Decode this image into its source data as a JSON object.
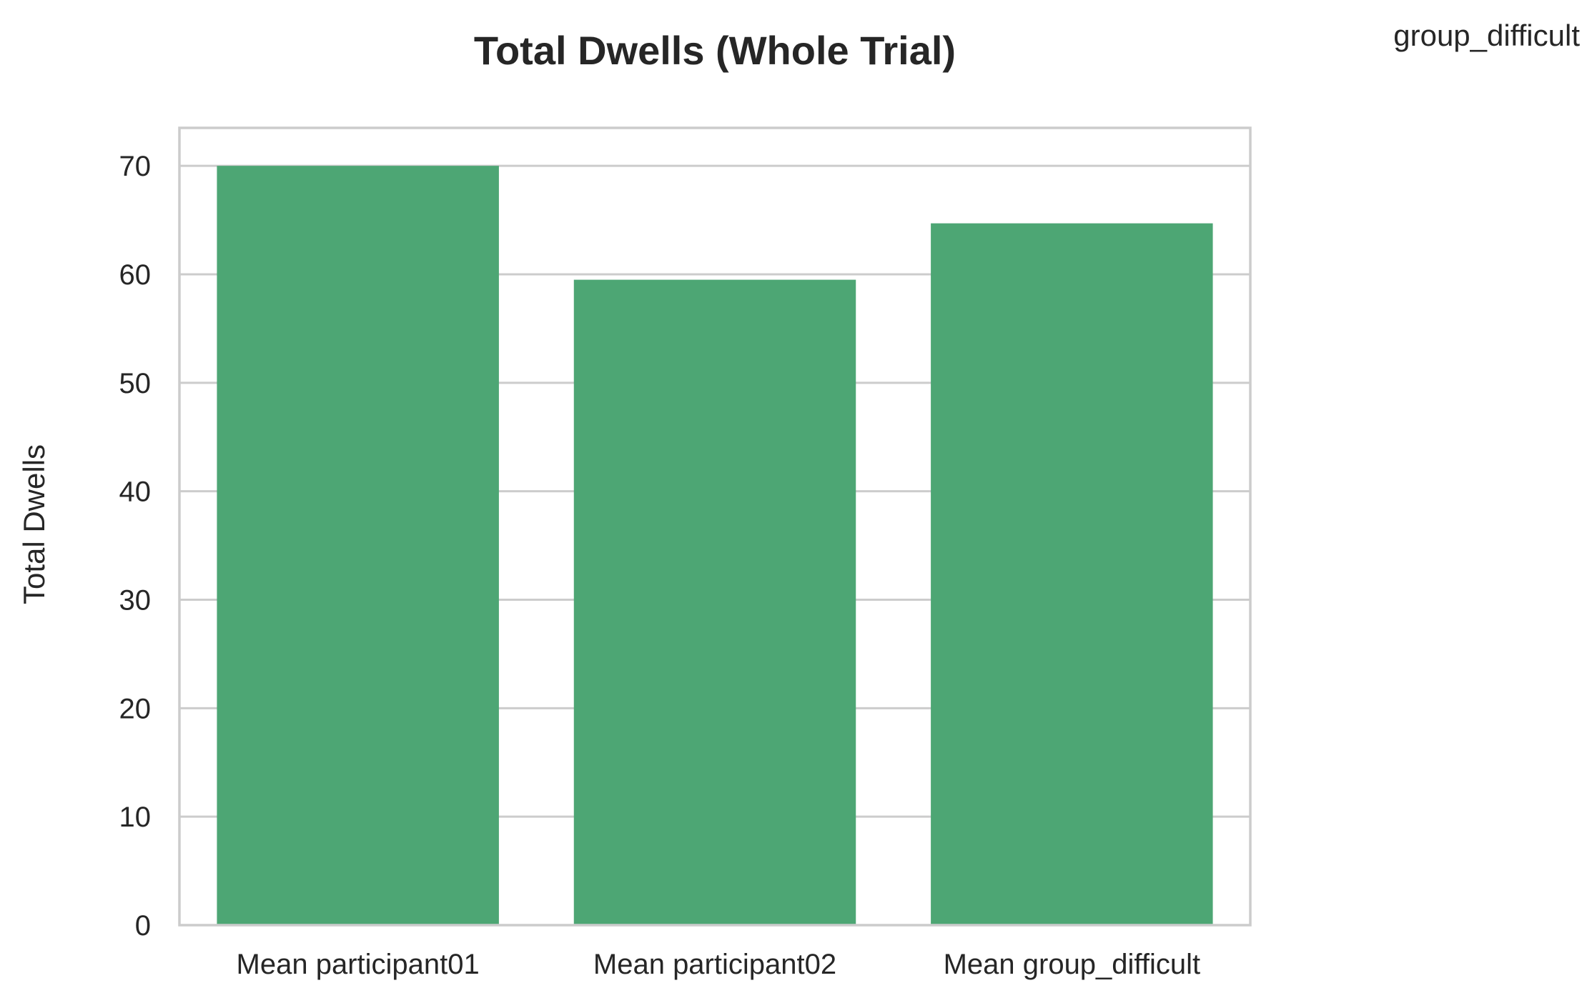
{
  "chart_data": {
    "type": "bar",
    "title": "Total Dwells (Whole Trial)",
    "corner_label": "group_difficult",
    "xlabel": "",
    "ylabel": "Total Dwells",
    "categories": [
      "Mean participant01",
      "Mean participant02",
      "Mean group_difficult"
    ],
    "values": [
      70.0,
      59.5,
      64.7
    ],
    "ylim": [
      0,
      73.5
    ],
    "yticks": [
      0,
      10,
      20,
      30,
      40,
      50,
      60,
      70
    ],
    "grid": "horizontal",
    "legend": "none",
    "colors": {
      "bar": "#4da674",
      "grid": "#cccccc",
      "frame": "#cccccc",
      "text": "#262626"
    }
  }
}
